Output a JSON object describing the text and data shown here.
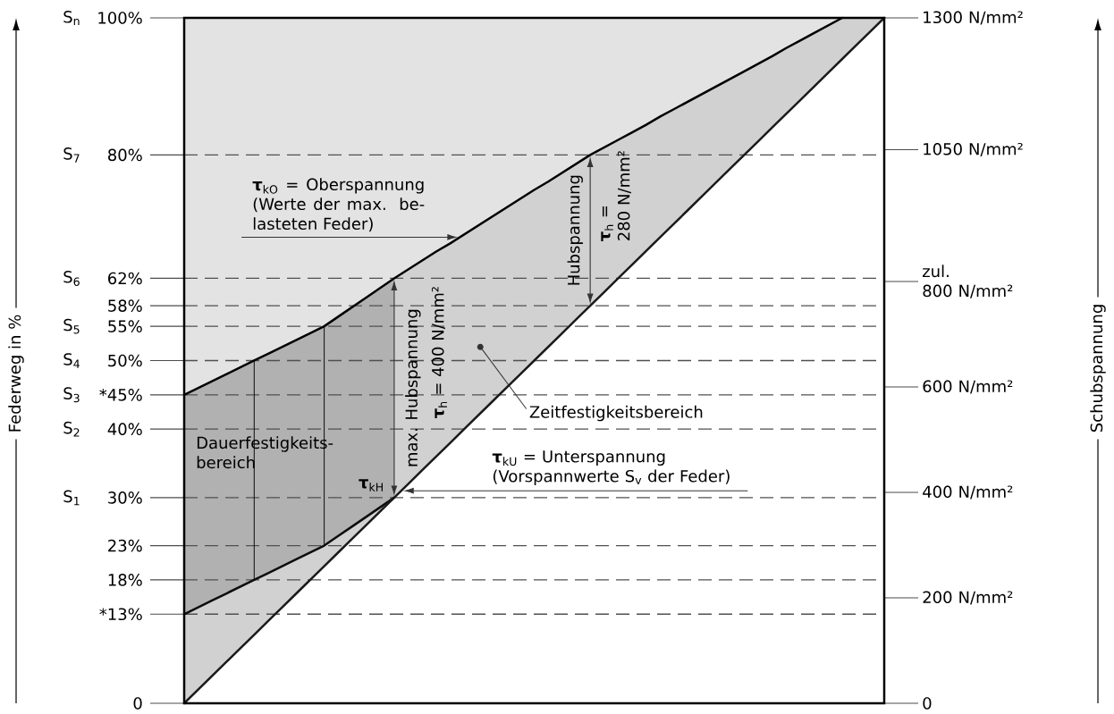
{
  "chart_data": {
    "type": "line",
    "ylabel": "Federweg in %",
    "y2label": "Schubspannung",
    "categories": [
      null,
      null,
      null,
      null,
      null,
      null,
      null,
      null,
      null,
      null,
      null,
      null,
      null,
      null,
      null,
      null,
      null,
      null,
      null,
      null,
      null,
      null,
      null,
      null,
      null,
      null,
      null,
      null,
      null,
      null,
      null,
      null,
      null,
      null,
      null,
      null,
      null,
      null,
      null,
      null,
      null,
      null,
      null,
      null,
      null,
      null,
      null,
      null,
      null,
      null,
      null
    ],
    "ylim": [
      0,
      100
    ],
    "yticks": [
      0,
      {
        "value": 13,
        "label": "*13%"
      },
      {
        "value": 18,
        "label": "18%"
      },
      {
        "value": 23,
        "label": "23%"
      },
      {
        "value": 30,
        "label": "30%"
      },
      {
        "value": 40,
        "label": "40%"
      },
      {
        "value": 45,
        "label": "*45%"
      },
      {
        "value": 50,
        "label": "50%"
      },
      {
        "value": 55,
        "label": "55%"
      },
      {
        "value": 58,
        "label": "58%"
      },
      {
        "value": 62,
        "label": "62%"
      },
      {
        "value": 80,
        "label": "80%"
      },
      {
        "value": 100,
        "label": "100%"
      }
    ],
    "y2lim": [
      0,
      1300
    ],
    "y2ticks": [
      0,
      {
        "value": 200,
        "label": "200 N/mm²"
      },
      {
        "value": 400,
        "label": "400 N/mm²"
      },
      {
        "value": 600,
        "label": "600 N/mm²"
      },
      {
        "value": 800,
        "label": "zul. 800 N/mm²"
      },
      {
        "value": 1050,
        "label": "1050 N/mm²"
      },
      {
        "value": 1300,
        "label": "1300 N/mm²"
      }
    ],
    "series": [
      {
        "color": "#000000",
        "values": [
          45,
          46,
          47,
          48,
          49,
          50,
          51,
          52,
          53,
          54,
          55,
          56.4,
          57.8,
          59.2,
          60.6,
          62,
          63.3,
          64.6,
          65.9,
          67.1,
          68.4,
          69.7,
          71,
          72.3,
          73.6,
          74.9,
          76.1,
          77.4,
          78.7,
          80,
          81.1,
          82.2,
          83.3,
          84.4,
          85.6,
          86.7,
          87.8,
          88.9,
          90,
          91.1,
          92.2,
          93.3,
          94.4,
          95.6,
          96.7,
          97.8,
          98.9,
          100,
          null,
          null,
          null
        ],
        "lower": [
          45,
          46,
          47,
          48,
          49,
          50,
          51,
          52,
          53,
          54,
          55,
          56.4,
          57.8,
          59.2,
          60.6,
          62,
          63.3,
          64.6,
          65.9,
          67.1,
          68.4,
          69.7,
          71,
          72.3,
          73.6,
          74.9,
          76.1,
          77.4,
          78.7,
          80,
          81.1,
          82.2,
          83.3,
          84.4,
          85.6,
          86.7,
          87.8,
          88.9,
          90,
          91.1,
          92.2,
          93.3,
          94.4,
          95.6,
          96.7,
          97.8,
          98.9,
          100,
          null,
          null,
          null
        ],
        "upper": [
          100,
          100,
          100,
          100,
          100,
          100,
          100,
          100,
          100,
          100,
          100,
          100,
          100,
          100,
          100,
          100,
          100,
          100,
          100,
          100,
          100,
          100,
          100,
          100,
          100,
          100,
          100,
          100,
          100,
          100,
          100,
          100,
          100,
          100,
          100,
          100,
          100,
          100,
          100,
          100,
          100,
          100,
          100,
          100,
          100,
          100,
          100,
          100,
          null,
          null,
          null
        ]
      },
      {
        "color": "#0d0d0d",
        "values": [
          13,
          14,
          15,
          16,
          17,
          18,
          19,
          20,
          21,
          22,
          23,
          24.4,
          25.8,
          27.2,
          28.6,
          30,
          null,
          null,
          null,
          null,
          null,
          null,
          null,
          null,
          null,
          null,
          null,
          null,
          null,
          null,
          null,
          null,
          null,
          null,
          null,
          null,
          null,
          null,
          null,
          null,
          null,
          null,
          null,
          null,
          null,
          null,
          null,
          null,
          null,
          null,
          null
        ],
        "lower": [
          13,
          14,
          15,
          16,
          17,
          18,
          19,
          20,
          21,
          22,
          23,
          24.4,
          25.8,
          27.2,
          28.6,
          30,
          null,
          null,
          null,
          null,
          null,
          null,
          null,
          null,
          null,
          null,
          null,
          null,
          null,
          null,
          null,
          null,
          null,
          null,
          null,
          null,
          null,
          null,
          null,
          null,
          null,
          null,
          null,
          null,
          null,
          null,
          null,
          null,
          null,
          null,
          null
        ],
        "upper": [
          45,
          46,
          47,
          48,
          49,
          50,
          51,
          52,
          53,
          54,
          55,
          56.4,
          57.8,
          59.2,
          60.6,
          62,
          null,
          null,
          null,
          null,
          null,
          null,
          null,
          null,
          null,
          null,
          null,
          null,
          null,
          null,
          null,
          null,
          null,
          null,
          null,
          null,
          null,
          null,
          null,
          null,
          null,
          null,
          null,
          null,
          null,
          null,
          null,
          null,
          null,
          null,
          null
        ],
        "errors": [
          null,
          null,
          null,
          null,
          null,
          [
            18,
            50
          ],
          null,
          null,
          null,
          null,
          [
            23,
            55
          ],
          null,
          null,
          null,
          null,
          null,
          null,
          null,
          null,
          null,
          null,
          null,
          null,
          null,
          null,
          null,
          null,
          null,
          null,
          null,
          null,
          null,
          null,
          null,
          null,
          null,
          null,
          null,
          null,
          null,
          null,
          null,
          null,
          null,
          null,
          null,
          null,
          null,
          null,
          null,
          null
        ]
      },
      {
        "color": "#1a1a1a",
        "values": [
          0,
          2,
          4,
          6,
          8,
          10,
          12,
          14,
          16,
          18,
          20,
          22,
          24,
          26,
          28,
          30,
          32,
          34,
          36,
          38,
          40,
          42,
          44,
          46,
          48,
          50,
          52,
          54,
          56,
          58,
          60,
          62,
          64,
          66,
          68,
          70,
          72,
          74,
          76,
          78,
          80,
          82,
          84,
          86,
          88,
          90,
          92,
          94,
          96,
          98,
          100
        ],
        "lower": [
          0,
          2,
          4,
          6,
          8,
          10,
          12,
          14,
          16,
          18,
          20,
          22,
          24,
          26,
          28,
          30,
          32,
          34,
          36,
          38,
          40,
          42,
          44,
          46,
          48,
          50,
          52,
          54,
          56,
          58,
          60,
          62,
          64,
          66,
          68,
          70,
          72,
          74,
          76,
          78,
          80,
          82,
          84,
          86,
          88,
          90,
          92,
          94,
          96,
          98,
          100
        ],
        "upper": [
          45,
          46,
          47,
          48,
          49,
          50,
          51,
          52,
          53,
          54,
          55,
          56.4,
          57.8,
          59.2,
          60.6,
          62,
          63.3,
          64.6,
          65.9,
          67.1,
          68.4,
          69.7,
          71,
          72.3,
          73.6,
          74.9,
          76.1,
          77.4,
          78.7,
          80,
          81.1,
          82.2,
          83.3,
          84.4,
          85.6,
          86.7,
          87.8,
          88.9,
          90,
          91.1,
          92.2,
          93.3,
          94.4,
          95.6,
          96.7,
          97.8,
          98.9,
          100,
          100,
          100,
          100
        ]
      }
    ],
    "ref_lines": [
      {
        "axis": "y",
        "value": 13,
        "color": "#505050",
        "line_style": "dashed"
      },
      {
        "axis": "y",
        "value": 18,
        "color": "#505050",
        "line_style": "dashed"
      },
      {
        "axis": "y",
        "value": 23,
        "color": "#505050",
        "line_style": "dashed"
      },
      {
        "axis": "y",
        "value": 30,
        "color": "#505050",
        "line_style": "dashed"
      },
      {
        "axis": "y",
        "value": 40,
        "color": "#505050",
        "line_style": "dashed"
      },
      {
        "axis": "y",
        "value": 45,
        "color": "#505050",
        "line_style": "dashed"
      },
      {
        "axis": "y",
        "value": 50,
        "color": "#505050",
        "line_style": "dashed"
      },
      {
        "axis": "y",
        "value": 55,
        "color": "#505050",
        "line_style": "dashed"
      },
      {
        "axis": "y",
        "value": 58,
        "color": "#505050",
        "line_style": "dashed"
      },
      {
        "axis": "y",
        "value": 62,
        "color": "#505050",
        "line_style": "dashed"
      },
      {
        "axis": "y",
        "value": 80,
        "color": "#505050",
        "line_style": "dashed"
      }
    ],
    "annotations": [
      "**τ**$_{kO}$ = Oberspannung (Werte der max. be-lasteten Feder)",
      "**τ**$_{kU}$ = Unterspannung (Vorspannwerte S$_{v}$ der Feder)",
      "Zeitfestigkeitsbereich",
      {
        "text": "max. Hubspannung",
        "y": 62
      },
      "**τ**$_{h}$ = 400 N/mm²",
      {
        "text": "Hubspannung",
        "y": 80
      },
      "**τ**$_{h}$ = 280 N/mm²",
      "**τ**$_{kH}$",
      "Dauerfestigkeits-bereich",
      "S$_{n}$",
      "S$_{7}$",
      "S$_{6}$",
      "S$_{5}$",
      "S$_{4}$",
      "S$_{3}$",
      "S$_{2}$",
      "S$_{1}$"
    ]
  }
}
